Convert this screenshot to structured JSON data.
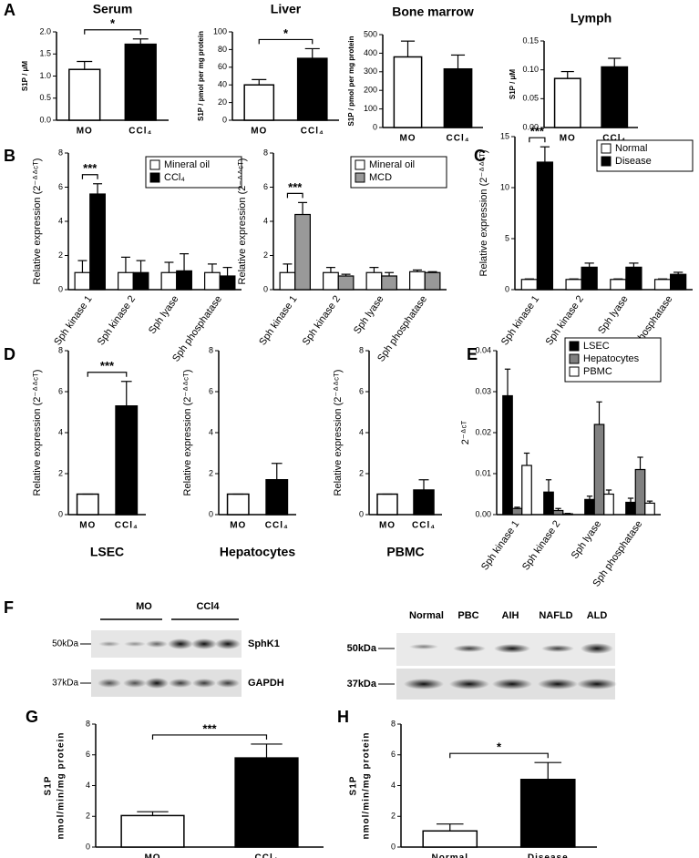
{
  "panels": [
    "A",
    "B",
    "C",
    "D",
    "E",
    "F",
    "G",
    "H"
  ],
  "blots": {
    "left": {
      "groups": [
        "MO",
        "CCl4"
      ],
      "proteins": [
        "SphK1",
        "GAPDH"
      ],
      "markers": [
        "50kDa",
        "37kDa"
      ]
    },
    "right": {
      "lanes": [
        "Normal",
        "PBC",
        "AIH",
        "NAFLD",
        "ALD"
      ],
      "markers": [
        "50kDa",
        "37kDa"
      ]
    }
  },
  "chart_data": [
    {
      "type": "bar",
      "title": "Serum",
      "ylabel": "S1P / μM",
      "categories": [
        "MO",
        "CCl₄"
      ],
      "values": [
        1.15,
        1.72
      ],
      "errors": [
        0.18,
        0.12
      ],
      "colors": [
        "#ffffff",
        "#000000"
      ],
      "annotation": "*",
      "ylim": [
        0,
        2
      ],
      "yticks": [
        {
          "value": 0,
          "label": "0.0"
        },
        0.5,
        {
          "value": 1,
          "label": "1.0"
        },
        1.5,
        {
          "value": 2,
          "label": "2.0"
        }
      ]
    },
    {
      "type": "bar",
      "title": "Liver",
      "ylabel": "S1P / pmol per mg protein",
      "categories": [
        "MO",
        "CCl₄"
      ],
      "values": [
        40,
        70
      ],
      "errors": [
        6,
        11
      ],
      "colors": [
        "#ffffff",
        "#000000"
      ],
      "annotation": "*",
      "ylim": [
        0,
        100
      ],
      "yticks": [
        0,
        20,
        40,
        60,
        80,
        100
      ]
    },
    {
      "type": "bar",
      "title": "Bone marrow",
      "ylabel": "S1P / pmol per mg protein",
      "categories": [
        "MO",
        "CCl₄"
      ],
      "values": [
        380,
        315
      ],
      "errors": [
        85,
        75
      ],
      "colors": [
        "#ffffff",
        "#000000"
      ],
      "ylim": [
        0,
        500
      ],
      "yticks": [
        0,
        100,
        200,
        300,
        400,
        500
      ]
    },
    {
      "type": "bar",
      "title": "Lymph",
      "ylabel": "S1P / μM",
      "categories": [
        "MO",
        "CCl₄"
      ],
      "values": [
        0.085,
        0.105
      ],
      "errors": [
        0.012,
        0.015
      ],
      "colors": [
        "#ffffff",
        "#000000"
      ],
      "ylim": [
        0,
        0.15
      ],
      "yticks": [
        {
          "value": 0,
          "label": "0.00"
        },
        {
          "value": 0.05,
          "label": "0.05"
        },
        {
          "value": 0.1,
          "label": "0.10"
        },
        {
          "value": 0.15,
          "label": "0.15"
        }
      ]
    },
    {
      "type": "grouped-bar",
      "ylabel": "Relative expression (2⁻ᐞᐞᶜᵀ)",
      "categories": [
        "Sph kinase 1",
        "Sph kinase 2",
        "Sph lyase",
        "Sph phosphatase"
      ],
      "annotation": "***",
      "legend": "top-right",
      "series": [
        {
          "name": "Mineral oil",
          "color": "#ffffff",
          "values": [
            1,
            1,
            1,
            1
          ],
          "errors": [
            0.7,
            0.9,
            0.6,
            0.5
          ]
        },
        {
          "name": "CCl₄",
          "color": "#000000",
          "values": [
            5.6,
            1.0,
            1.1,
            0.8
          ],
          "errors": [
            0.6,
            0.7,
            1.0,
            0.5
          ]
        }
      ],
      "ylim": [
        0,
        8
      ],
      "yticks": [
        0,
        2,
        4,
        6,
        8
      ]
    },
    {
      "type": "grouped-bar",
      "ylabel": "Relative expression (2⁻ᐞᐞᶜᵀ)",
      "categories": [
        "Sph kinase 1",
        "Sph kinase 2",
        "Sph lyase",
        "Sph phosphatase"
      ],
      "annotation": "***",
      "legend": "top-right",
      "series": [
        {
          "name": "Mineral oil",
          "color": "#ffffff",
          "values": [
            1.0,
            1.0,
            1.0,
            1.05
          ],
          "errors": [
            0.5,
            0.3,
            0.3,
            0.1
          ]
        },
        {
          "name": "MCD",
          "color": "#999999",
          "values": [
            4.4,
            0.8,
            0.8,
            1.0
          ],
          "errors": [
            0.7,
            0.1,
            0.2,
            0.05
          ]
        }
      ],
      "ylim": [
        0,
        8
      ],
      "yticks": [
        0,
        2,
        4,
        6,
        8
      ]
    },
    {
      "type": "grouped-bar",
      "ylabel": "Relative expression (2⁻ᐞᐞᶜᵀ)",
      "categories": [
        "Sph kinase 1",
        "Sph kinase 2",
        "Sph lyase",
        "Sph phosphatase"
      ],
      "annotation": "***",
      "legend": "top-right",
      "series": [
        {
          "name": "Normal",
          "color": "#ffffff",
          "values": [
            1,
            1,
            1,
            1
          ],
          "errors": [
            0.05,
            0.05,
            0.05,
            0.05
          ]
        },
        {
          "name": "Disease",
          "color": "#000000",
          "values": [
            12.5,
            2.2,
            2.2,
            1.5
          ],
          "errors": [
            1.5,
            0.4,
            0.4,
            0.2
          ]
        }
      ],
      "ylim": [
        0,
        15
      ],
      "yticks": [
        0,
        5,
        10,
        15
      ]
    },
    {
      "type": "bar",
      "xlabel": "LSEC",
      "ylabel": "Relative expression (2⁻ᐞᐞᶜᵀ)",
      "categories": [
        "MO",
        "CCl₄"
      ],
      "values": [
        1,
        5.3
      ],
      "errors": [
        0,
        1.2
      ],
      "colors": [
        "#ffffff",
        "#000000"
      ],
      "annotation": "***",
      "ylim": [
        0,
        8
      ],
      "yticks": [
        0,
        2,
        4,
        6,
        8
      ]
    },
    {
      "type": "bar",
      "xlabel": "Hepatocytes",
      "ylabel": "Relative expression (2⁻ᐞᐞᶜᵀ)",
      "categories": [
        "MO",
        "CCl₄"
      ],
      "values": [
        1,
        1.7
      ],
      "errors": [
        0,
        0.8
      ],
      "colors": [
        "#ffffff",
        "#000000"
      ],
      "ylim": [
        0,
        8
      ],
      "yticks": [
        0,
        2,
        4,
        6,
        8
      ]
    },
    {
      "type": "bar",
      "xlabel": "PBMC",
      "ylabel": "Relative expression (2⁻ᐞᐞᶜᵀ)",
      "categories": [
        "MO",
        "CCl₄"
      ],
      "values": [
        1,
        1.2
      ],
      "errors": [
        0,
        0.5
      ],
      "colors": [
        "#ffffff",
        "#000000"
      ],
      "ylim": [
        0,
        8
      ],
      "yticks": [
        0,
        2,
        4,
        6,
        8
      ]
    },
    {
      "type": "grouped-bar",
      "ylabel": "2⁻ᐞᶜᵀ",
      "categories": [
        "Sph kinase 1",
        "Sph kinase 2",
        "Sph lyase",
        "Sph phosphatase"
      ],
      "legend": "top-right",
      "series": [
        {
          "name": "LSEC",
          "color": "#000000",
          "values": [
            0.029,
            0.0055,
            0.0037,
            0.003
          ],
          "errors": [
            0.0065,
            0.003,
            0.0008,
            0.001
          ]
        },
        {
          "name": "Hepatocytes",
          "color": "#808080",
          "values": [
            0.0015,
            0.001,
            0.022,
            0.011
          ],
          "errors": [
            0.0003,
            0.0005,
            0.0055,
            0.003
          ]
        },
        {
          "name": "PBMC",
          "color": "#ffffff",
          "values": [
            0.012,
            0.0002,
            0.005,
            0.0028
          ],
          "errors": [
            0.003,
            0.0001,
            0.001,
            0.0005
          ]
        }
      ],
      "ylim": [
        0,
        0.04
      ],
      "yticks": [
        {
          "value": 0,
          "label": "0.00"
        },
        {
          "value": 0.01,
          "label": "0.01"
        },
        {
          "value": 0.02,
          "label": "0.02"
        },
        {
          "value": 0.03,
          "label": "0.03"
        },
        {
          "value": 0.04,
          "label": "0.04"
        }
      ]
    },
    {
      "type": "bar",
      "ylabel": [
        "S1P",
        "nmol/min/mg protein"
      ],
      "categories": [
        "MO",
        "CCl₄"
      ],
      "values": [
        2.05,
        5.8
      ],
      "errors": [
        0.25,
        0.9
      ],
      "colors": [
        "#ffffff",
        "#000000"
      ],
      "annotation": "***",
      "ylim": [
        0,
        8
      ],
      "yticks": [
        0,
        2,
        4,
        6,
        8
      ]
    },
    {
      "type": "bar",
      "ylabel": [
        "S1P",
        "nmol/min/mg protein"
      ],
      "categories": [
        "Normal",
        "Disease"
      ],
      "values": [
        1.05,
        4.4
      ],
      "errors": [
        0.45,
        1.1
      ],
      "colors": [
        "#ffffff",
        "#000000"
      ],
      "annotation": "*",
      "ylim": [
        0,
        8
      ],
      "yticks": [
        0,
        2,
        4,
        6,
        8
      ]
    }
  ]
}
